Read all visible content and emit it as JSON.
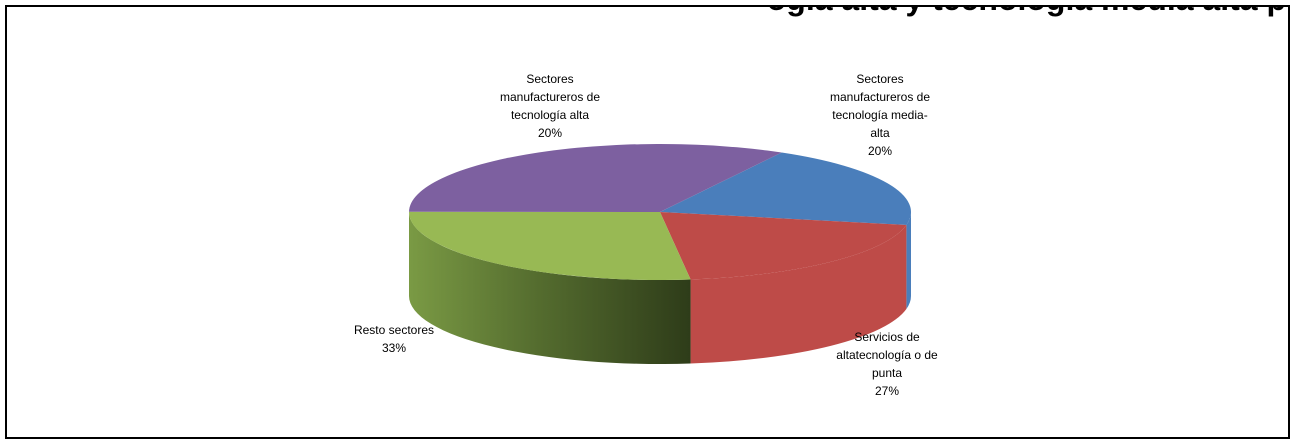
{
  "header": {
    "title_fragment": "ogía alta y tecnología media alta p"
  },
  "chart_data": {
    "type": "pie",
    "title": "",
    "three_d": true,
    "legend": "none",
    "slices": [
      {
        "label": "Sectores manufactureros de tecnología alta",
        "label_lines": [
          "Sectores",
          "manufactureros de",
          "tecnología alta",
          "20%"
        ],
        "value": 20,
        "percent_label": "20%",
        "color": "#4a7ebb"
      },
      {
        "label": "Sectores manufactureros de tecnología media-alta",
        "label_lines": [
          "Sectores",
          "manufactureros de",
          "tecnología media-",
          "alta",
          "20%"
        ],
        "value": 20,
        "percent_label": "20%",
        "color": "#be4b48"
      },
      {
        "label": "Servicios de altatecnología o de punta",
        "label_lines": [
          "Servicios de",
          "altatecnología o de",
          "punta",
          "27%"
        ],
        "value": 27,
        "percent_label": "27%",
        "color": "#98b954"
      },
      {
        "label": "Resto sectores",
        "label_lines": [
          "Resto sectores",
          "33%"
        ],
        "value": 33,
        "percent_label": "33%",
        "color": "#7d60a0"
      }
    ]
  }
}
